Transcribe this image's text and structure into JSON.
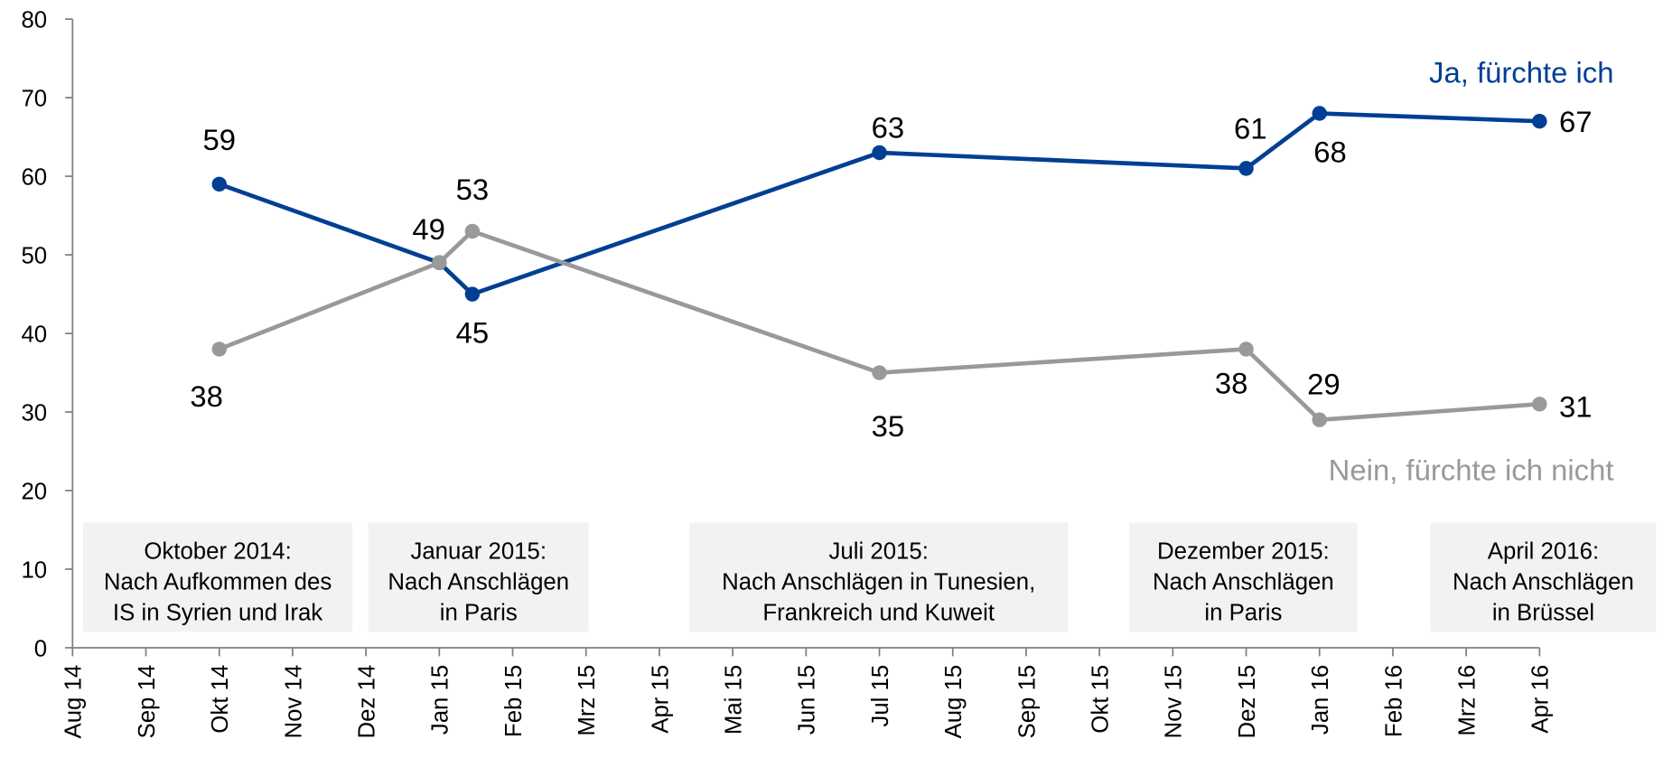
{
  "chart_data": {
    "type": "line",
    "xlim": [
      0,
      20
    ],
    "xticks": [
      {
        "value": 0,
        "label": "Aug 14"
      },
      {
        "value": 1,
        "label": "Sep 14"
      },
      {
        "value": 2,
        "label": "Okt 14"
      },
      {
        "value": 3,
        "label": "Nov 14"
      },
      {
        "value": 4,
        "label": "Dez 14"
      },
      {
        "value": 5,
        "label": "Jan 15"
      },
      {
        "value": 6,
        "label": "Feb 15"
      },
      {
        "value": 7,
        "label": "Mrz 15"
      },
      {
        "value": 8,
        "label": "Apr 15"
      },
      {
        "value": 9,
        "label": "Mai 15"
      },
      {
        "value": 10,
        "label": "Jun 15"
      },
      {
        "value": 11,
        "label": "Jul 15"
      },
      {
        "value": 12,
        "label": "Aug 15"
      },
      {
        "value": 13,
        "label": "Sep 15"
      },
      {
        "value": 14,
        "label": "Okt 15"
      },
      {
        "value": 15,
        "label": "Nov 15"
      },
      {
        "value": 16,
        "label": "Dez 15"
      },
      {
        "value": 17,
        "label": "Jan 16"
      },
      {
        "value": 18,
        "label": "Feb 16"
      },
      {
        "value": 19,
        "label": "Mrz 16"
      },
      {
        "value": 20,
        "label": "Apr 16"
      }
    ],
    "ylim": [
      0,
      80
    ],
    "yticks": [
      0,
      10,
      20,
      30,
      40,
      50,
      60,
      70,
      80
    ],
    "x": [
      2,
      5,
      5.45,
      11,
      16,
      17,
      20
    ],
    "series": [
      {
        "name": "Ja, fürchte ich",
        "color": "#003f94",
        "values": [
          59,
          49,
          45,
          63,
          61,
          68,
          67
        ]
      },
      {
        "name": "Nein, fürchte ich nicht",
        "color": "#999999",
        "values": [
          38,
          49,
          53,
          35,
          38,
          29,
          31
        ],
        "value_labels": [
          "38",
          null,
          "53",
          "35",
          "38",
          "29",
          "31"
        ]
      }
    ],
    "annotations": [
      {
        "lines": [
          "Oktober 2014:",
          "Nach Aufkommen des",
          "IS in Syrien und Irak"
        ]
      },
      {
        "lines": [
          "Januar 2015:",
          "Nach Anschlägen",
          "in Paris"
        ]
      },
      {
        "lines": [
          "Juli 2015:",
          "Nach Anschlägen in Tunesien,",
          "Frankreich und Kuweit"
        ]
      },
      {
        "lines": [
          "Dezember 2015:",
          "Nach Anschlägen",
          "in Paris"
        ]
      },
      {
        "lines": [
          "April 2016:",
          "Nach Anschlägen",
          "in Brüssel"
        ]
      }
    ]
  }
}
